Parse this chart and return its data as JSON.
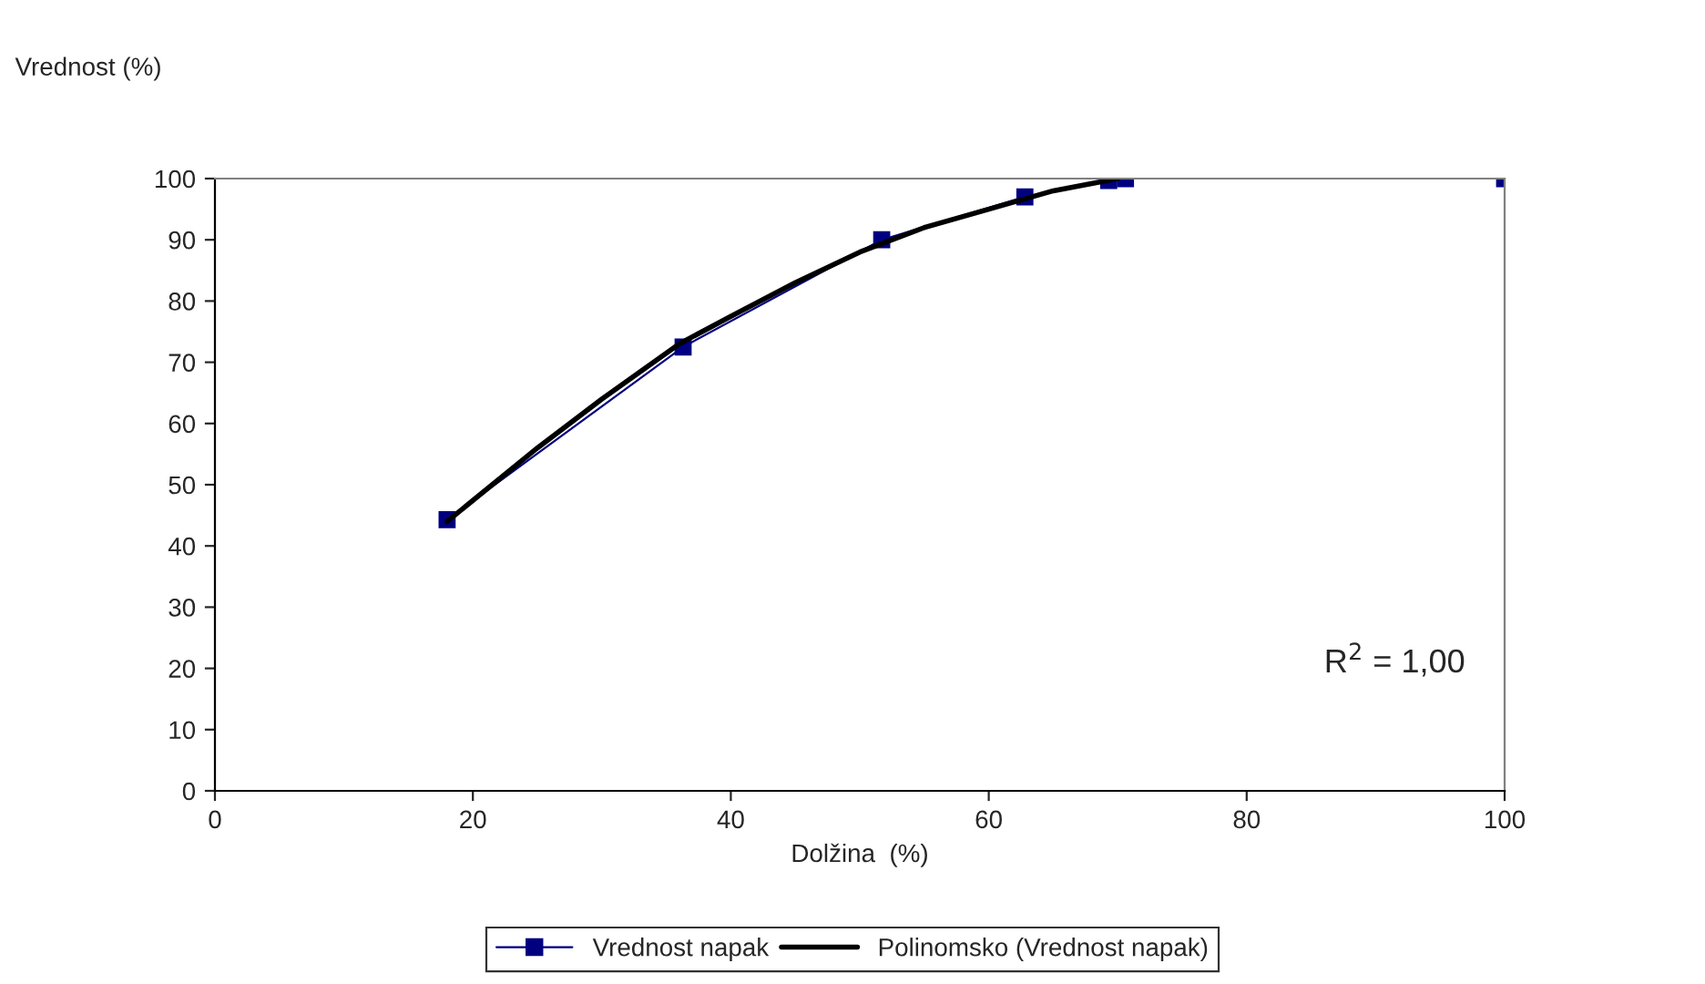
{
  "chart_data": {
    "type": "line",
    "xlabel": "Dolžina  (%)",
    "ylabel": "Vrednost (%)",
    "xlim": [
      0,
      100
    ],
    "xticks": [
      0,
      20,
      40,
      60,
      80,
      100
    ],
    "ylim": [
      0,
      100
    ],
    "yticks": [
      0,
      10,
      20,
      30,
      40,
      50,
      60,
      70,
      80,
      90,
      100
    ],
    "grid": false,
    "legend": "bottom",
    "annotations": [
      "R$^{2}$ = 1,00"
    ],
    "series": [
      {
        "name": "Vrednost napak",
        "color": "#000080",
        "marker": "square",
        "line_style": "solid",
        "x": [
          18,
          36.3,
          51.7,
          62.8,
          69.3,
          70.6,
          100
        ],
        "values": [
          44.3,
          72.5,
          90,
          97,
          99.7,
          100,
          100
        ]
      },
      {
        "name": "Polinomsko (Vrednost napak)",
        "color": "#000000",
        "marker": "none",
        "line_style": "solid",
        "x": [
          18,
          25,
          30,
          36,
          40,
          45,
          50,
          55,
          60,
          65,
          70
        ],
        "values": [
          44,
          56,
          64,
          73,
          77.5,
          83,
          88,
          92,
          95,
          98,
          100
        ]
      }
    ]
  }
}
